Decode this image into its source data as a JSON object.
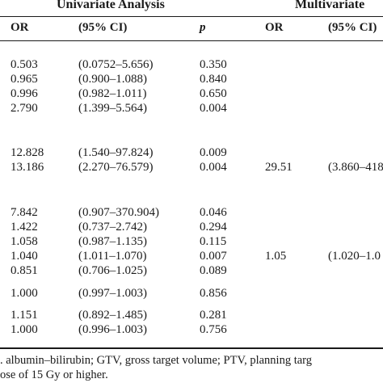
{
  "header": {
    "univariate_title": "Univariate Analysis",
    "multivariate_title": "Multivariate",
    "col_or": "OR",
    "col_ci": "(95% CI)",
    "col_p": "p",
    "col_or_m": "OR",
    "col_ci_m": "(95% CI)"
  },
  "rows": [
    {
      "or": "0.503",
      "ci": "(0.0752–5.656)",
      "p": "0.350"
    },
    {
      "or": "0.965",
      "ci": "(0.900–1.088)",
      "p": "0.840"
    },
    {
      "or": "0.996",
      "ci": "(0.982–1.011)",
      "p": "0.650"
    },
    {
      "or": "2.790",
      "ci": "(1.399–5.564)",
      "p": "0.004"
    },
    {
      "or": "12.828",
      "ci": "(1.540–97.824)",
      "p": "0.009"
    },
    {
      "or": "13.186",
      "ci": "(2.270–76.579)",
      "p": "0.004",
      "or_m": "29.51",
      "ci_m": "(3.860–418"
    },
    {
      "or": "7.842",
      "ci": "(0.907–370.904)",
      "p": "0.046"
    },
    {
      "or": "1.422",
      "ci": "(0.737–2.742)",
      "p": "0.294"
    },
    {
      "or": "1.058",
      "ci": "(0.987–1.135)",
      "p": "0.115"
    },
    {
      "or": "1.040",
      "ci": "(1.011–1.070)",
      "p": "0.007",
      "or_m": "1.05",
      "ci_m": "(1.020–1.0"
    },
    {
      "or": "0.851",
      "ci": "(0.706–1.025)",
      "p": "0.089"
    },
    {
      "or": "1.000",
      "ci": "(0.997–1.003)",
      "p": "0.856"
    },
    {
      "or": "1.151",
      "ci": "(0.892–1.485)",
      "p": "0.281"
    },
    {
      "or": "1.000",
      "ci": "(0.996–1.003)",
      "p": "0.756"
    }
  ],
  "footnote": {
    "line1": ". albumin–bilirubin; GTV, gross target volume; PTV, planning targ",
    "line2": "ose of 15 Gy or higher."
  }
}
